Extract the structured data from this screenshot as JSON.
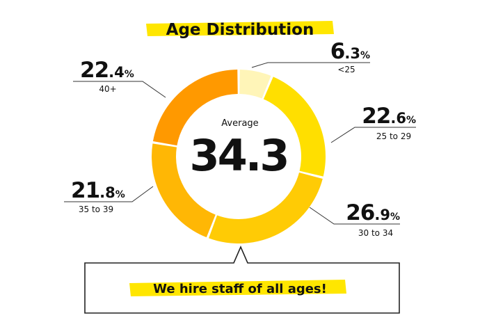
{
  "chart_data": {
    "type": "pie",
    "variant": "donut",
    "title": "Age Distribution",
    "center": {
      "label": "Average",
      "value": "34.3"
    },
    "value_suffix": "%",
    "slices": [
      {
        "category": "<25",
        "value": 6.3,
        "int_part": "6",
        "dec_part": ".3",
        "color": "#FFF5B8"
      },
      {
        "category": "25 to 29",
        "value": 22.6,
        "int_part": "22",
        "dec_part": ".6",
        "color": "#FFDF00"
      },
      {
        "category": "30 to 34",
        "value": 26.9,
        "int_part": "26",
        "dec_part": ".9",
        "color": "#FFCB05"
      },
      {
        "category": "35 to 39",
        "value": 21.8,
        "int_part": "21",
        "dec_part": ".8",
        "color": "#FFB705"
      },
      {
        "category": "40+",
        "value": 22.4,
        "int_part": "22",
        "dec_part": ".4",
        "color": "#FF9900"
      }
    ],
    "start": "top, clockwise"
  },
  "callout": {
    "text": "We hire staff of all ages!"
  },
  "colors": {
    "highlight": "#FFE600",
    "text": "#111111",
    "leader_line": "#333333"
  }
}
